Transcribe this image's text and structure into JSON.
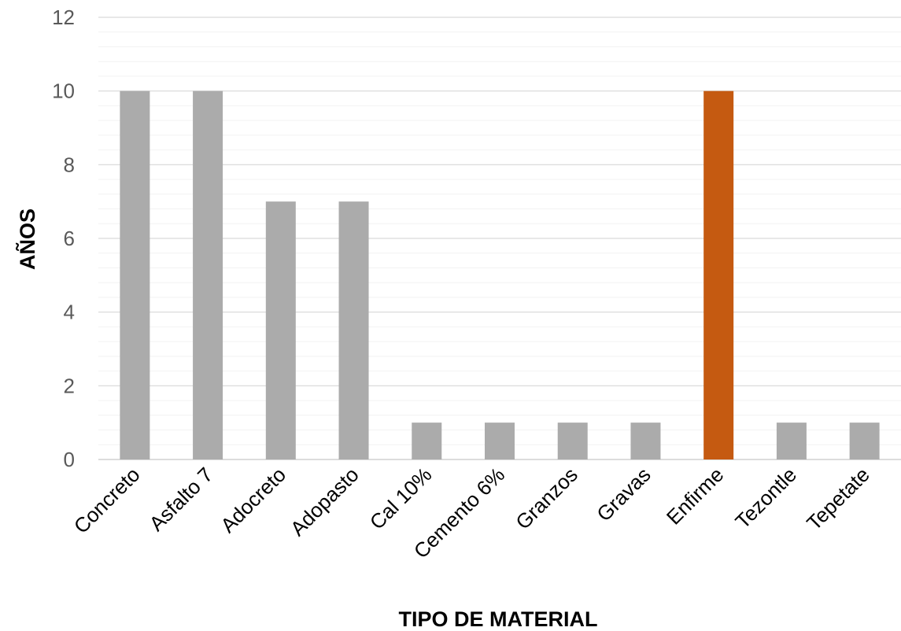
{
  "chart_data": {
    "type": "bar",
    "categories": [
      "Concreto",
      "Asfalto 7",
      "Adocreto",
      "Adopasto",
      "Cal 10%",
      "Cemento 6%",
      "Granzos",
      "Gravas",
      "Enfirme",
      "Tezontle",
      "Tepetate"
    ],
    "values": [
      10,
      10,
      7,
      7,
      1,
      1,
      1,
      1,
      10,
      1,
      1
    ],
    "bar_colors": [
      "#ababab",
      "#ababab",
      "#ababab",
      "#ababab",
      "#ababab",
      "#ababab",
      "#ababab",
      "#ababab",
      "#c55a11",
      "#ababab",
      "#ababab"
    ],
    "title": "",
    "xlabel": "TIPO DE MATERIAL",
    "ylabel": "AÑOS",
    "ylim": [
      0,
      12
    ],
    "yticks": [
      "0",
      "2",
      "4",
      "6",
      "8",
      "10",
      "12"
    ],
    "grid": true,
    "minor_grid": true,
    "legend": "none"
  }
}
